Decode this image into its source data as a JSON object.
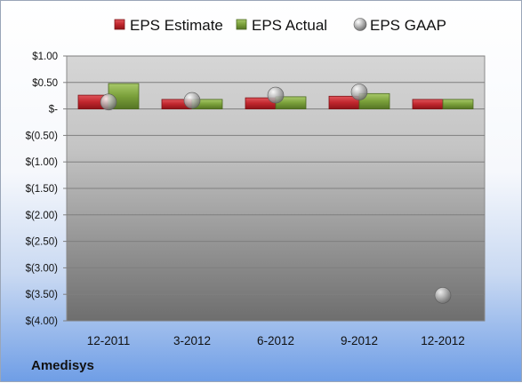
{
  "company": "Amedisys",
  "chart_data": {
    "type": "bar",
    "categories": [
      "12-2011",
      "3-2012",
      "6-2012",
      "9-2012",
      "12-2012"
    ],
    "series": [
      {
        "name": "EPS Estimate",
        "kind": "bar",
        "color": "#c0262d",
        "values": [
          0.26,
          0.18,
          0.21,
          0.24,
          0.18
        ]
      },
      {
        "name": "EPS Actual",
        "kind": "bar",
        "color": "#7aa03a",
        "values": [
          0.48,
          0.18,
          0.23,
          0.29,
          0.18
        ]
      },
      {
        "name": "EPS GAAP",
        "kind": "scatter",
        "color": "#a6a6a6",
        "values": [
          0.13,
          0.16,
          0.26,
          0.32,
          -3.52
        ]
      }
    ],
    "ylim": [
      -4.0,
      1.0
    ],
    "yticks": [
      1.0,
      0.5,
      0.0,
      -0.5,
      -1.0,
      -1.5,
      -2.0,
      -2.5,
      -3.0,
      -3.5,
      -4.0
    ],
    "ytick_labels": [
      "$1.00",
      "$0.50",
      "$-",
      "$(0.50)",
      "$(1.00)",
      "$(1.50)",
      "$(2.00)",
      "$(2.50)",
      "$(3.00)",
      "$(3.50)",
      "$(4.00)"
    ],
    "grid": true,
    "legend": "top"
  }
}
